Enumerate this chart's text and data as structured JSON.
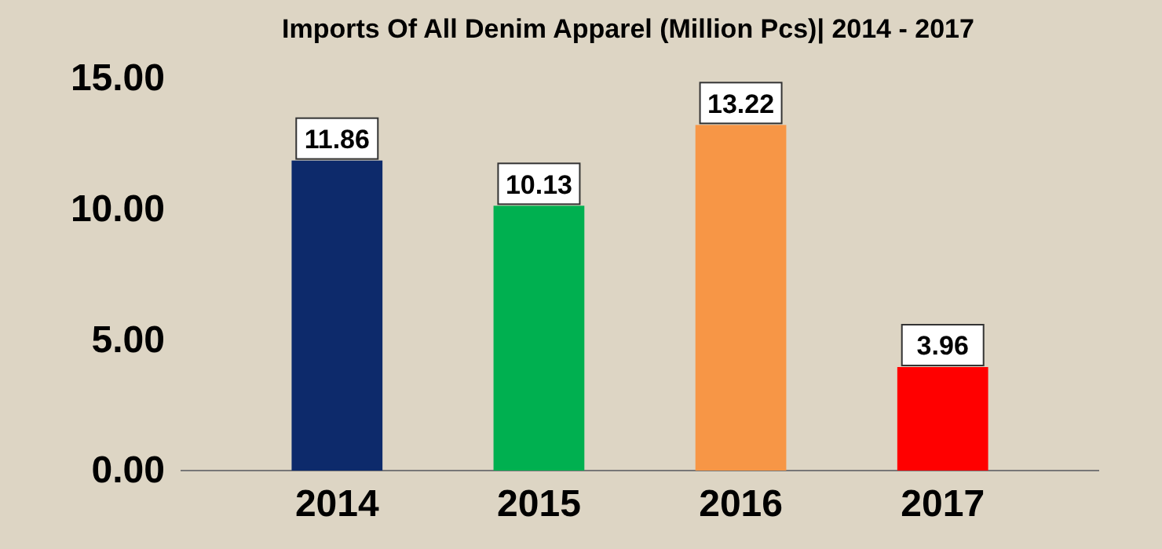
{
  "chart_data": {
    "type": "bar",
    "title": "Imports Of All Denim Apparel (Million Pcs)| 2014 - 2017",
    "categories": [
      "2014",
      "2015",
      "2016",
      "2017"
    ],
    "values": [
      11.86,
      10.13,
      13.22,
      3.96
    ],
    "colors": [
      "#0d2a6b",
      "#00b050",
      "#f79646",
      "#ff0000"
    ],
    "ylim": [
      0,
      15
    ],
    "yticks": [
      {
        "value": 0,
        "label": "0.00"
      },
      {
        "value": 5,
        "label": "5.00"
      },
      {
        "value": 10,
        "label": "10.00"
      },
      {
        "value": 15,
        "label": "15.00"
      }
    ],
    "data_labels": true,
    "grid": false
  }
}
